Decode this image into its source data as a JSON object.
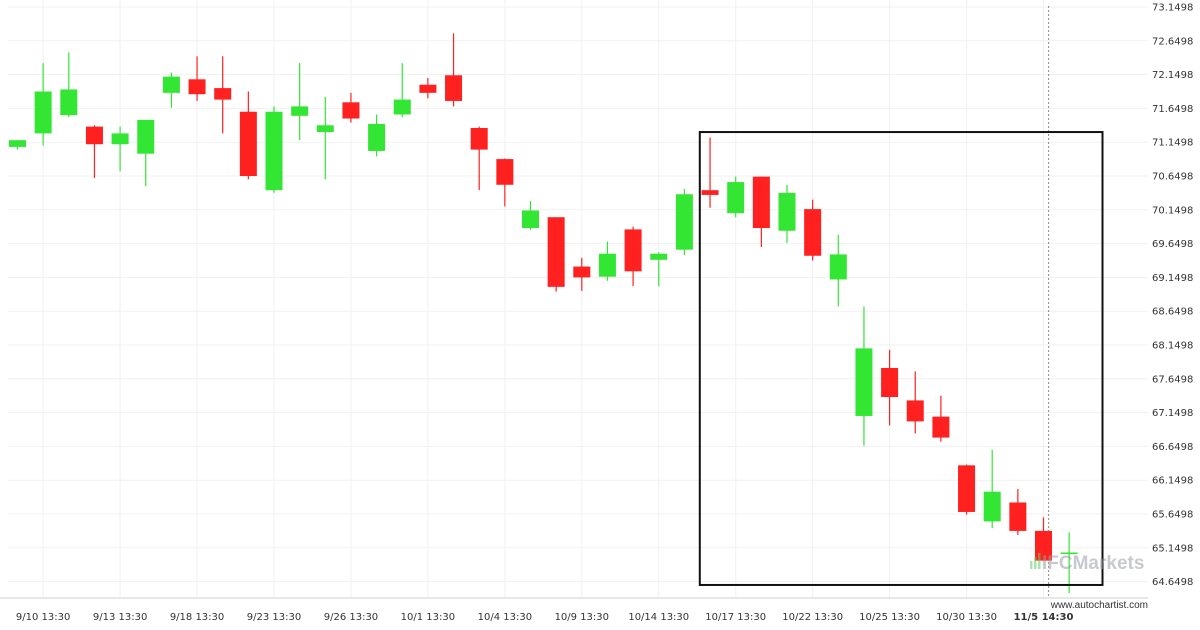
{
  "chart_data": {
    "type": "candlestick",
    "title": "",
    "xlabel": "",
    "ylabel": "",
    "ylim": [
      64.4,
      73.2
    ],
    "y_ticks": [
      "73.1498",
      "72.6498",
      "72.1498",
      "71.6498",
      "71.1498",
      "70.6498",
      "70.1498",
      "69.6498",
      "69.1498",
      "68.6498",
      "68.1498",
      "67.6498",
      "67.1498",
      "66.6498",
      "66.1498",
      "65.6498",
      "65.1498",
      "64.6498"
    ],
    "x_ticks": [
      {
        "label": "9/10 13:30",
        "index": 1,
        "current": false
      },
      {
        "label": "9/13 13:30",
        "index": 4,
        "current": false
      },
      {
        "label": "9/18 13:30",
        "index": 7,
        "current": false
      },
      {
        "label": "9/23 13:30",
        "index": 10,
        "current": false
      },
      {
        "label": "9/26 13:30",
        "index": 13,
        "current": false
      },
      {
        "label": "10/1 13:30",
        "index": 16,
        "current": false
      },
      {
        "label": "10/4 13:30",
        "index": 19,
        "current": false
      },
      {
        "label": "10/9 13:30",
        "index": 22,
        "current": false
      },
      {
        "label": "10/14 13:30",
        "index": 25,
        "current": false
      },
      {
        "label": "10/17 13:30",
        "index": 28,
        "current": false
      },
      {
        "label": "10/22 13:30",
        "index": 31,
        "current": false
      },
      {
        "label": "10/25 13:30",
        "index": 34,
        "current": false
      },
      {
        "label": "10/30 13:30",
        "index": 37,
        "current": false
      },
      {
        "label": "11/5 14:30",
        "index": 40,
        "current": true
      }
    ],
    "up_color": "#33e633",
    "down_color": "#ff2020",
    "candles": [
      {
        "o": 71.08,
        "h": 71.14,
        "c": 71.18,
        "l": 71.04
      },
      {
        "o": 71.28,
        "h": 72.32,
        "c": 71.9,
        "l": 71.1
      },
      {
        "o": 71.55,
        "h": 72.48,
        "c": 71.93,
        "l": 71.52
      },
      {
        "o": 71.38,
        "h": 71.4,
        "c": 71.12,
        "l": 70.62
      },
      {
        "o": 71.12,
        "h": 71.38,
        "c": 71.28,
        "l": 70.72
      },
      {
        "o": 70.98,
        "h": 71.48,
        "c": 71.48,
        "l": 70.5
      },
      {
        "o": 71.88,
        "h": 72.18,
        "c": 72.12,
        "l": 71.66
      },
      {
        "o": 72.08,
        "h": 72.42,
        "c": 71.86,
        "l": 71.76
      },
      {
        "o": 71.95,
        "h": 72.42,
        "c": 71.78,
        "l": 71.28
      },
      {
        "o": 71.6,
        "h": 71.9,
        "c": 70.65,
        "l": 70.6
      },
      {
        "o": 70.44,
        "h": 71.68,
        "c": 71.6,
        "l": 70.4
      },
      {
        "o": 71.54,
        "h": 72.32,
        "c": 71.68,
        "l": 71.18
      },
      {
        "o": 71.3,
        "h": 71.82,
        "c": 71.4,
        "l": 70.6
      },
      {
        "o": 71.74,
        "h": 71.88,
        "c": 71.5,
        "l": 71.44
      },
      {
        "o": 71.02,
        "h": 71.56,
        "c": 71.42,
        "l": 70.94
      },
      {
        "o": 71.56,
        "h": 72.32,
        "c": 71.78,
        "l": 71.52
      },
      {
        "o": 72.0,
        "h": 72.1,
        "c": 71.88,
        "l": 71.8
      },
      {
        "o": 72.14,
        "h": 72.76,
        "c": 71.76,
        "l": 71.68
      },
      {
        "o": 71.36,
        "h": 71.38,
        "c": 71.04,
        "l": 70.44
      },
      {
        "o": 70.9,
        "h": 70.91,
        "c": 70.52,
        "l": 70.2
      },
      {
        "o": 69.88,
        "h": 70.28,
        "c": 70.14,
        "l": 69.85
      },
      {
        "o": 70.04,
        "h": 70.04,
        "c": 69.01,
        "l": 68.94
      },
      {
        "o": 69.31,
        "h": 69.44,
        "c": 69.15,
        "l": 68.95
      },
      {
        "o": 69.16,
        "h": 69.68,
        "c": 69.5,
        "l": 69.1
      },
      {
        "o": 69.86,
        "h": 69.9,
        "c": 69.24,
        "l": 69.02
      },
      {
        "o": 69.41,
        "h": 69.52,
        "c": 69.5,
        "l": 69.02
      },
      {
        "o": 69.56,
        "h": 70.46,
        "c": 70.38,
        "l": 69.48
      },
      {
        "o": 70.44,
        "h": 71.22,
        "c": 70.37,
        "l": 70.18
      },
      {
        "o": 70.1,
        "h": 70.64,
        "c": 70.56,
        "l": 70.04
      },
      {
        "o": 70.64,
        "h": 70.64,
        "c": 69.88,
        "l": 69.6
      },
      {
        "o": 69.84,
        "h": 70.52,
        "c": 70.4,
        "l": 69.66
      },
      {
        "o": 70.16,
        "h": 70.3,
        "c": 69.47,
        "l": 69.4
      },
      {
        "o": 69.12,
        "h": 69.78,
        "c": 69.49,
        "l": 68.72
      },
      {
        "o": 67.1,
        "h": 68.72,
        "c": 68.1,
        "l": 66.66
      },
      {
        "o": 67.81,
        "h": 68.08,
        "c": 67.38,
        "l": 66.96
      },
      {
        "o": 67.33,
        "h": 67.76,
        "c": 67.02,
        "l": 66.84
      },
      {
        "o": 67.09,
        "h": 67.4,
        "c": 66.78,
        "l": 66.72
      },
      {
        "o": 66.37,
        "h": 66.38,
        "c": 65.68,
        "l": 65.64
      },
      {
        "o": 65.54,
        "h": 66.6,
        "c": 65.98,
        "l": 65.44
      },
      {
        "o": 65.82,
        "h": 66.02,
        "c": 65.4,
        "l": 65.34
      },
      {
        "o": 65.4,
        "h": 65.6,
        "c": 64.96,
        "l": 64.96
      },
      {
        "o": 65.06,
        "h": 65.38,
        "c": 65.08,
        "l": 64.48
      }
    ],
    "pattern_box": {
      "start_index": 26.6,
      "end_index": 42.3,
      "top": 71.3,
      "bottom": 64.6
    },
    "current_index": 40.2
  },
  "branding": {
    "watermark": "IFCMarkets",
    "source": "www.autochartist.com"
  }
}
